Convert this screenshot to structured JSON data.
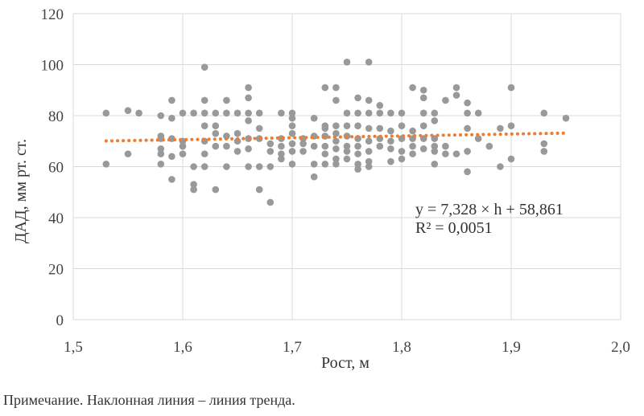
{
  "chart_data": {
    "type": "scatter",
    "xlabel": "Рост, м",
    "ylabel": "ДАД, мм рт. ст.",
    "xlim": [
      1.5,
      2.0
    ],
    "ylim": [
      0,
      120
    ],
    "x_ticks": [
      1.5,
      1.6,
      1.7,
      1.8,
      1.9,
      2.0
    ],
    "x_tick_labels": [
      "1,5",
      "1,6",
      "1,7",
      "1,8",
      "1,9",
      "2,0"
    ],
    "y_ticks": [
      0,
      20,
      40,
      60,
      80,
      100,
      120
    ],
    "y_tick_labels": [
      "0",
      "20",
      "40",
      "60",
      "80",
      "100",
      "120"
    ],
    "grid": true,
    "series": [
      {
        "color": "#999999",
        "points": [
          [
            1.53,
            81
          ],
          [
            1.53,
            61
          ],
          [
            1.55,
            82
          ],
          [
            1.55,
            65
          ],
          [
            1.56,
            81
          ],
          [
            1.58,
            80
          ],
          [
            1.58,
            72
          ],
          [
            1.58,
            71
          ],
          [
            1.58,
            67
          ],
          [
            1.58,
            65
          ],
          [
            1.58,
            61
          ],
          [
            1.59,
            86
          ],
          [
            1.59,
            79
          ],
          [
            1.59,
            71
          ],
          [
            1.59,
            64
          ],
          [
            1.59,
            55
          ],
          [
            1.6,
            81
          ],
          [
            1.6,
            70
          ],
          [
            1.6,
            68
          ],
          [
            1.6,
            65
          ],
          [
            1.61,
            81
          ],
          [
            1.61,
            60
          ],
          [
            1.61,
            53
          ],
          [
            1.61,
            51
          ],
          [
            1.62,
            99
          ],
          [
            1.62,
            86
          ],
          [
            1.62,
            81
          ],
          [
            1.62,
            76
          ],
          [
            1.62,
            70
          ],
          [
            1.62,
            65
          ],
          [
            1.62,
            60
          ],
          [
            1.63,
            81
          ],
          [
            1.63,
            76
          ],
          [
            1.63,
            73
          ],
          [
            1.63,
            68
          ],
          [
            1.63,
            51
          ],
          [
            1.64,
            86
          ],
          [
            1.64,
            81
          ],
          [
            1.64,
            72
          ],
          [
            1.64,
            68
          ],
          [
            1.64,
            60
          ],
          [
            1.65,
            81
          ],
          [
            1.65,
            73
          ],
          [
            1.65,
            70
          ],
          [
            1.65,
            66
          ],
          [
            1.66,
            91
          ],
          [
            1.66,
            87
          ],
          [
            1.66,
            81
          ],
          [
            1.66,
            78
          ],
          [
            1.66,
            71
          ],
          [
            1.66,
            67
          ],
          [
            1.66,
            60
          ],
          [
            1.67,
            81
          ],
          [
            1.67,
            75
          ],
          [
            1.67,
            71
          ],
          [
            1.67,
            60
          ],
          [
            1.67,
            51
          ],
          [
            1.68,
            69
          ],
          [
            1.68,
            66
          ],
          [
            1.68,
            60
          ],
          [
            1.68,
            46
          ],
          [
            1.69,
            81
          ],
          [
            1.69,
            71
          ],
          [
            1.69,
            68
          ],
          [
            1.69,
            65
          ],
          [
            1.69,
            63
          ],
          [
            1.7,
            81
          ],
          [
            1.7,
            79
          ],
          [
            1.7,
            76
          ],
          [
            1.7,
            73
          ],
          [
            1.7,
            69
          ],
          [
            1.7,
            66
          ],
          [
            1.7,
            61
          ],
          [
            1.71,
            71
          ],
          [
            1.71,
            69
          ],
          [
            1.71,
            66
          ],
          [
            1.72,
            79
          ],
          [
            1.72,
            72
          ],
          [
            1.72,
            68
          ],
          [
            1.72,
            61
          ],
          [
            1.72,
            56
          ],
          [
            1.73,
            91
          ],
          [
            1.73,
            76
          ],
          [
            1.73,
            75
          ],
          [
            1.73,
            72
          ],
          [
            1.73,
            68
          ],
          [
            1.73,
            65
          ],
          [
            1.73,
            61
          ],
          [
            1.74,
            91
          ],
          [
            1.74,
            86
          ],
          [
            1.74,
            76
          ],
          [
            1.74,
            73
          ],
          [
            1.74,
            70
          ],
          [
            1.74,
            67
          ],
          [
            1.74,
            63
          ],
          [
            1.74,
            61
          ],
          [
            1.75,
            101
          ],
          [
            1.75,
            81
          ],
          [
            1.75,
            76
          ],
          [
            1.75,
            72
          ],
          [
            1.75,
            68
          ],
          [
            1.75,
            66
          ],
          [
            1.75,
            63
          ],
          [
            1.76,
            87
          ],
          [
            1.76,
            81
          ],
          [
            1.76,
            76
          ],
          [
            1.76,
            71
          ],
          [
            1.76,
            68
          ],
          [
            1.76,
            65
          ],
          [
            1.76,
            61
          ],
          [
            1.76,
            59
          ],
          [
            1.77,
            101
          ],
          [
            1.77,
            86
          ],
          [
            1.77,
            81
          ],
          [
            1.77,
            75
          ],
          [
            1.77,
            70
          ],
          [
            1.77,
            66
          ],
          [
            1.77,
            62
          ],
          [
            1.77,
            60
          ],
          [
            1.78,
            84
          ],
          [
            1.78,
            81
          ],
          [
            1.78,
            75
          ],
          [
            1.78,
            71
          ],
          [
            1.78,
            68
          ],
          [
            1.79,
            81
          ],
          [
            1.79,
            74
          ],
          [
            1.79,
            70
          ],
          [
            1.79,
            67
          ],
          [
            1.79,
            62
          ],
          [
            1.8,
            81
          ],
          [
            1.8,
            76
          ],
          [
            1.8,
            71
          ],
          [
            1.8,
            66
          ],
          [
            1.8,
            63
          ],
          [
            1.81,
            91
          ],
          [
            1.81,
            74
          ],
          [
            1.81,
            71
          ],
          [
            1.81,
            68
          ],
          [
            1.81,
            65
          ],
          [
            1.82,
            90
          ],
          [
            1.82,
            87
          ],
          [
            1.82,
            81
          ],
          [
            1.82,
            76
          ],
          [
            1.82,
            71
          ],
          [
            1.82,
            67
          ],
          [
            1.83,
            81
          ],
          [
            1.83,
            78
          ],
          [
            1.83,
            71
          ],
          [
            1.83,
            68
          ],
          [
            1.83,
            66
          ],
          [
            1.83,
            61
          ],
          [
            1.84,
            86
          ],
          [
            1.84,
            68
          ],
          [
            1.84,
            65
          ],
          [
            1.85,
            91
          ],
          [
            1.85,
            88
          ],
          [
            1.85,
            65
          ],
          [
            1.86,
            85
          ],
          [
            1.86,
            81
          ],
          [
            1.86,
            75
          ],
          [
            1.86,
            66
          ],
          [
            1.86,
            58
          ],
          [
            1.87,
            81
          ],
          [
            1.87,
            71
          ],
          [
            1.88,
            68
          ],
          [
            1.89,
            75
          ],
          [
            1.89,
            60
          ],
          [
            1.9,
            91
          ],
          [
            1.9,
            76
          ],
          [
            1.9,
            63
          ],
          [
            1.93,
            81
          ],
          [
            1.93,
            69
          ],
          [
            1.93,
            66
          ],
          [
            1.95,
            79
          ]
        ]
      }
    ],
    "trendline": {
      "color": "#ed7d31",
      "style": "dotted",
      "slope": 7.328,
      "intercept": 58.861,
      "x_range": [
        1.53,
        1.95
      ],
      "equation": "y = 7,328 × h + 58,861",
      "r2": "R² = 0,0051"
    }
  },
  "note": "Примечание. Наклонная линия – линия тренда."
}
